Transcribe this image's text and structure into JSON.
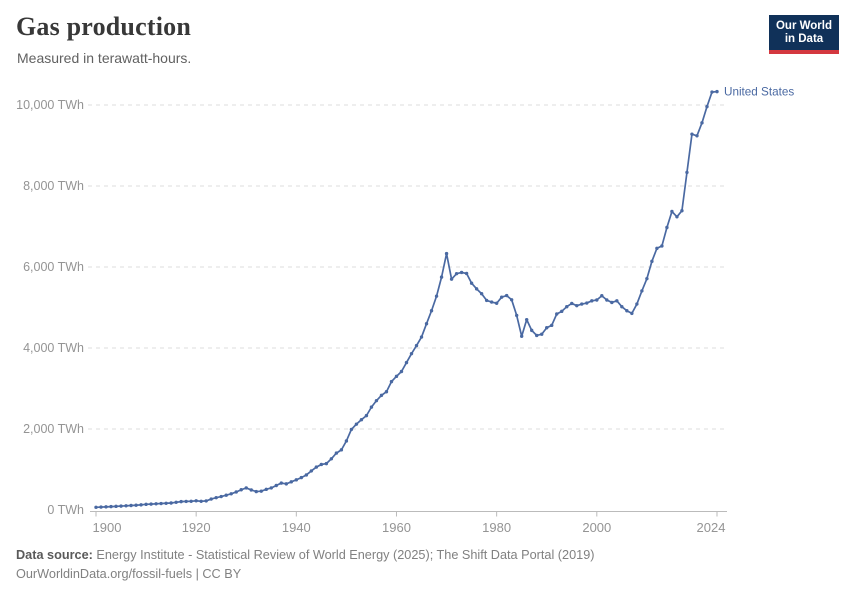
{
  "header": {
    "title": "Gas production",
    "subtitle": "Measured in terawatt-hours.",
    "logo_line1": "Our World",
    "logo_line2": "in Data"
  },
  "legend": {
    "label": "United States"
  },
  "footer": {
    "source_label": "Data source:",
    "source_text": " Energy Institute - Statistical Review of World Energy (2025); The Shift Data Portal (2019)",
    "link_text": "OurWorldinData.org/fossil-fuels",
    "license_suffix": " | CC BY"
  },
  "colors": {
    "series": "#4a69a2",
    "grid": "#dcdcdc",
    "axis": "#bbbbbb",
    "tick_text": "#949494",
    "logo_bg": "#103159",
    "logo_red": "#d4383f"
  },
  "chart_data": {
    "type": "line",
    "title": "Gas production",
    "subtitle": "Measured in terawatt-hours.",
    "unit": "TWh",
    "xlabel": "",
    "ylabel": "TWh",
    "ylim": [
      0,
      10000
    ],
    "grid": "dashed-horizontal",
    "legend_position": "line-end-right",
    "yticks": {
      "values": [
        0,
        2000,
        4000,
        6000,
        8000,
        10000
      ],
      "labels": [
        "0 TWh",
        "2,000 TWh",
        "4,000 TWh",
        "6,000 TWh",
        "8,000 TWh",
        "10,000 TWh"
      ]
    },
    "xticks": {
      "values": [
        1900,
        1920,
        1940,
        1960,
        1980,
        2000,
        2024
      ],
      "labels": [
        "1900",
        "1920",
        "1940",
        "1960",
        "1980",
        "2000",
        "2024"
      ]
    },
    "years": [
      1900,
      1901,
      1902,
      1903,
      1904,
      1905,
      1906,
      1907,
      1908,
      1909,
      1910,
      1911,
      1912,
      1913,
      1914,
      1915,
      1916,
      1917,
      1918,
      1919,
      1920,
      1921,
      1922,
      1923,
      1924,
      1925,
      1926,
      1927,
      1928,
      1929,
      1930,
      1931,
      1932,
      1933,
      1934,
      1935,
      1936,
      1937,
      1938,
      1939,
      1940,
      1941,
      1942,
      1943,
      1944,
      1945,
      1946,
      1947,
      1948,
      1949,
      1950,
      1951,
      1952,
      1953,
      1954,
      1955,
      1956,
      1957,
      1958,
      1959,
      1960,
      1961,
      1962,
      1963,
      1964,
      1965,
      1966,
      1967,
      1968,
      1969,
      1970,
      1971,
      1972,
      1973,
      1974,
      1975,
      1976,
      1977,
      1978,
      1979,
      1980,
      1981,
      1982,
      1983,
      1984,
      1985,
      1986,
      1987,
      1988,
      1989,
      1990,
      1991,
      1992,
      1993,
      1994,
      1995,
      1996,
      1997,
      1998,
      1999,
      2000,
      2001,
      2002,
      2003,
      2004,
      2005,
      2006,
      2007,
      2008,
      2009,
      2010,
      2011,
      2012,
      2013,
      2014,
      2015,
      2016,
      2017,
      2018,
      2019,
      2020,
      2021,
      2022,
      2023,
      2024
    ],
    "series": [
      {
        "name": "United States",
        "color": "#4a69a2",
        "values": [
          66,
          72,
          78,
          84,
          90,
          97,
          104,
          111,
          118,
          128,
          140,
          146,
          153,
          160,
          166,
          173,
          190,
          207,
          212,
          215,
          228,
          215,
          225,
          270,
          305,
          332,
          365,
          400,
          445,
          500,
          545,
          495,
          455,
          465,
          510,
          545,
          605,
          665,
          645,
          695,
          745,
          800,
          865,
          965,
          1060,
          1125,
          1145,
          1265,
          1405,
          1485,
          1705,
          1990,
          2120,
          2230,
          2330,
          2540,
          2700,
          2830,
          2920,
          3170,
          3300,
          3420,
          3640,
          3860,
          4060,
          4270,
          4600,
          4920,
          5280,
          5750,
          6330,
          5700,
          5835,
          5865,
          5840,
          5600,
          5460,
          5340,
          5175,
          5135,
          5105,
          5255,
          5295,
          5190,
          4805,
          4290,
          4700,
          4435,
          4310,
          4340,
          4500,
          4560,
          4840,
          4905,
          5020,
          5100,
          5045,
          5085,
          5110,
          5165,
          5185,
          5290,
          5185,
          5125,
          5165,
          5020,
          4920,
          4855,
          5085,
          5410,
          5712,
          6140,
          6460,
          6520,
          6975,
          7370,
          7240,
          7390,
          8335,
          9280,
          9240,
          9560,
          9960,
          10320,
          10330
        ]
      }
    ]
  }
}
